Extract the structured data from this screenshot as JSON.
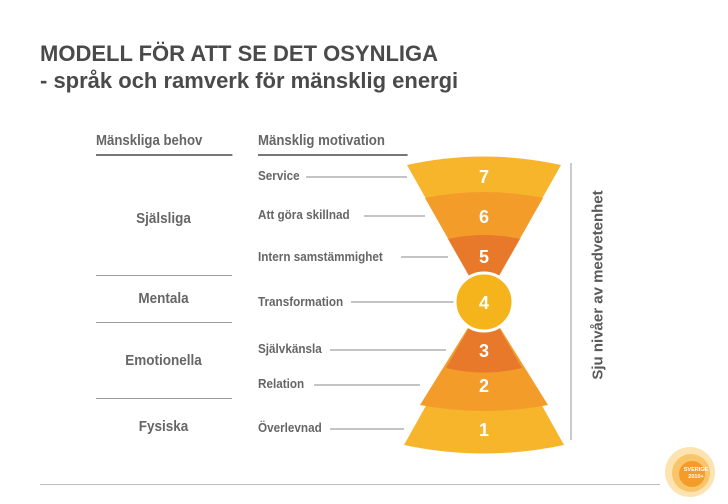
{
  "title": {
    "line1": "MODELL FÖR ATT SE DET OSYNLIGA",
    "line2": "- språk och ramverk för mänsklig energi"
  },
  "headers": {
    "needs": "Mänskliga behov",
    "motivation": "Mänsklig motivation"
  },
  "needs": [
    "Själsliga",
    "Mentala",
    "Emotionella",
    "Fysiska"
  ],
  "levels": [
    {
      "num": "7",
      "label": "Service"
    },
    {
      "num": "6",
      "label": "Att göra skillnad"
    },
    {
      "num": "5",
      "label": "Intern samstämmighet"
    },
    {
      "num": "4",
      "label": "Transformation"
    },
    {
      "num": "3",
      "label": "Självkänsla"
    },
    {
      "num": "2",
      "label": "Relation"
    },
    {
      "num": "1",
      "label": "Överlevnad"
    }
  ],
  "side_label": "Sju nivåer av medvetenhet",
  "logo": {
    "line1": "SVERIGE",
    "line2": "2010+"
  },
  "colors": {
    "outer": "#f7b52c",
    "middle": "#f39c2a",
    "inner": "#e8782a",
    "center": "#f6b41c",
    "text_on_color": "#ffffff",
    "lines": "#8a8a8a"
  }
}
